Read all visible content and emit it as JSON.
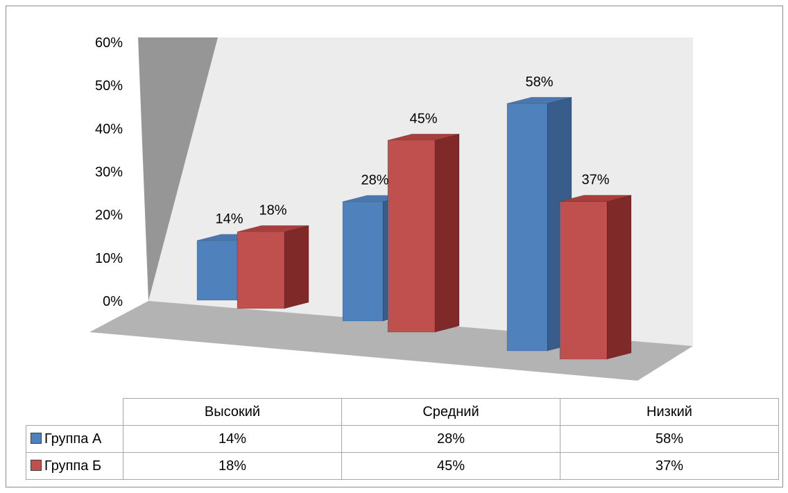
{
  "chart_data": {
    "type": "bar",
    "categories": [
      "Высокий",
      "Средний",
      "Низкий"
    ],
    "series": [
      {
        "name": "Группа А",
        "values": [
          14,
          28,
          58
        ],
        "labels": [
          "14%",
          "28%",
          "58%"
        ],
        "color": "#4f81bd",
        "side_color": "#385d8a",
        "top_color": "#4a77b0"
      },
      {
        "name": "Группа Б",
        "values": [
          18,
          45,
          37
        ],
        "labels": [
          "18%",
          "45%",
          "37%"
        ],
        "color": "#c0504d",
        "side_color": "#7f2a29",
        "top_color": "#a93f3c"
      }
    ],
    "y_ticks": [
      "0%",
      "10%",
      "20%",
      "30%",
      "40%",
      "50%",
      "60%"
    ],
    "ylim": [
      0,
      60
    ],
    "grid": false,
    "legend": "data-table",
    "title": "",
    "xlabel": "",
    "ylabel": ""
  }
}
